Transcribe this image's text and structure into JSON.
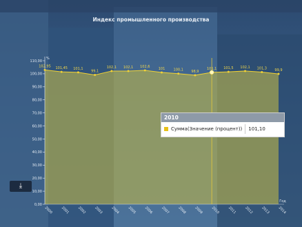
{
  "title": "Индекс промышленного производства",
  "y_unit": "%",
  "x_unit": "Год",
  "download_icon": "download-icon",
  "tooltip": {
    "year": "2010",
    "series_label": "Сумма(Значение (процент))",
    "value": "101,10"
  },
  "colors": {
    "line": "#f2d235",
    "area": "#b9b34a",
    "axis_text": "#e8eef5",
    "data_label": "#f4d84b",
    "tooltip_swatch": "#e7c019"
  },
  "chart_data": {
    "type": "area",
    "title": "Индекс промышленного производства",
    "categories": [
      "2000",
      "2001",
      "2002",
      "2003",
      "2004",
      "2005",
      "2006",
      "2007",
      "2008",
      "2009",
      "2010",
      "2011",
      "2012",
      "2013",
      "2014"
    ],
    "values": [
      102.95,
      101.45,
      101.1,
      99.1,
      102.1,
      102.1,
      102.6,
      101,
      100.1,
      98.9,
      101.1,
      101.5,
      102.1,
      101.3,
      99.9
    ],
    "data_labels": [
      "102,95",
      "101,45",
      "101,1",
      "99,1",
      "102,1",
      "102,1",
      "102,6",
      "101",
      "100,1",
      "98,9",
      "101,1",
      "101,5",
      "102,1",
      "101,3",
      "99,9"
    ],
    "y_ticks": [
      "0,00",
      "10,00",
      "20,00",
      "30,00",
      "40,00",
      "50,00",
      "60,00",
      "70,00",
      "80,00",
      "90,00",
      "100,00",
      "110,00"
    ],
    "ylim": [
      0,
      110
    ],
    "highlighted": "2010",
    "grid": false,
    "legend": "none"
  }
}
